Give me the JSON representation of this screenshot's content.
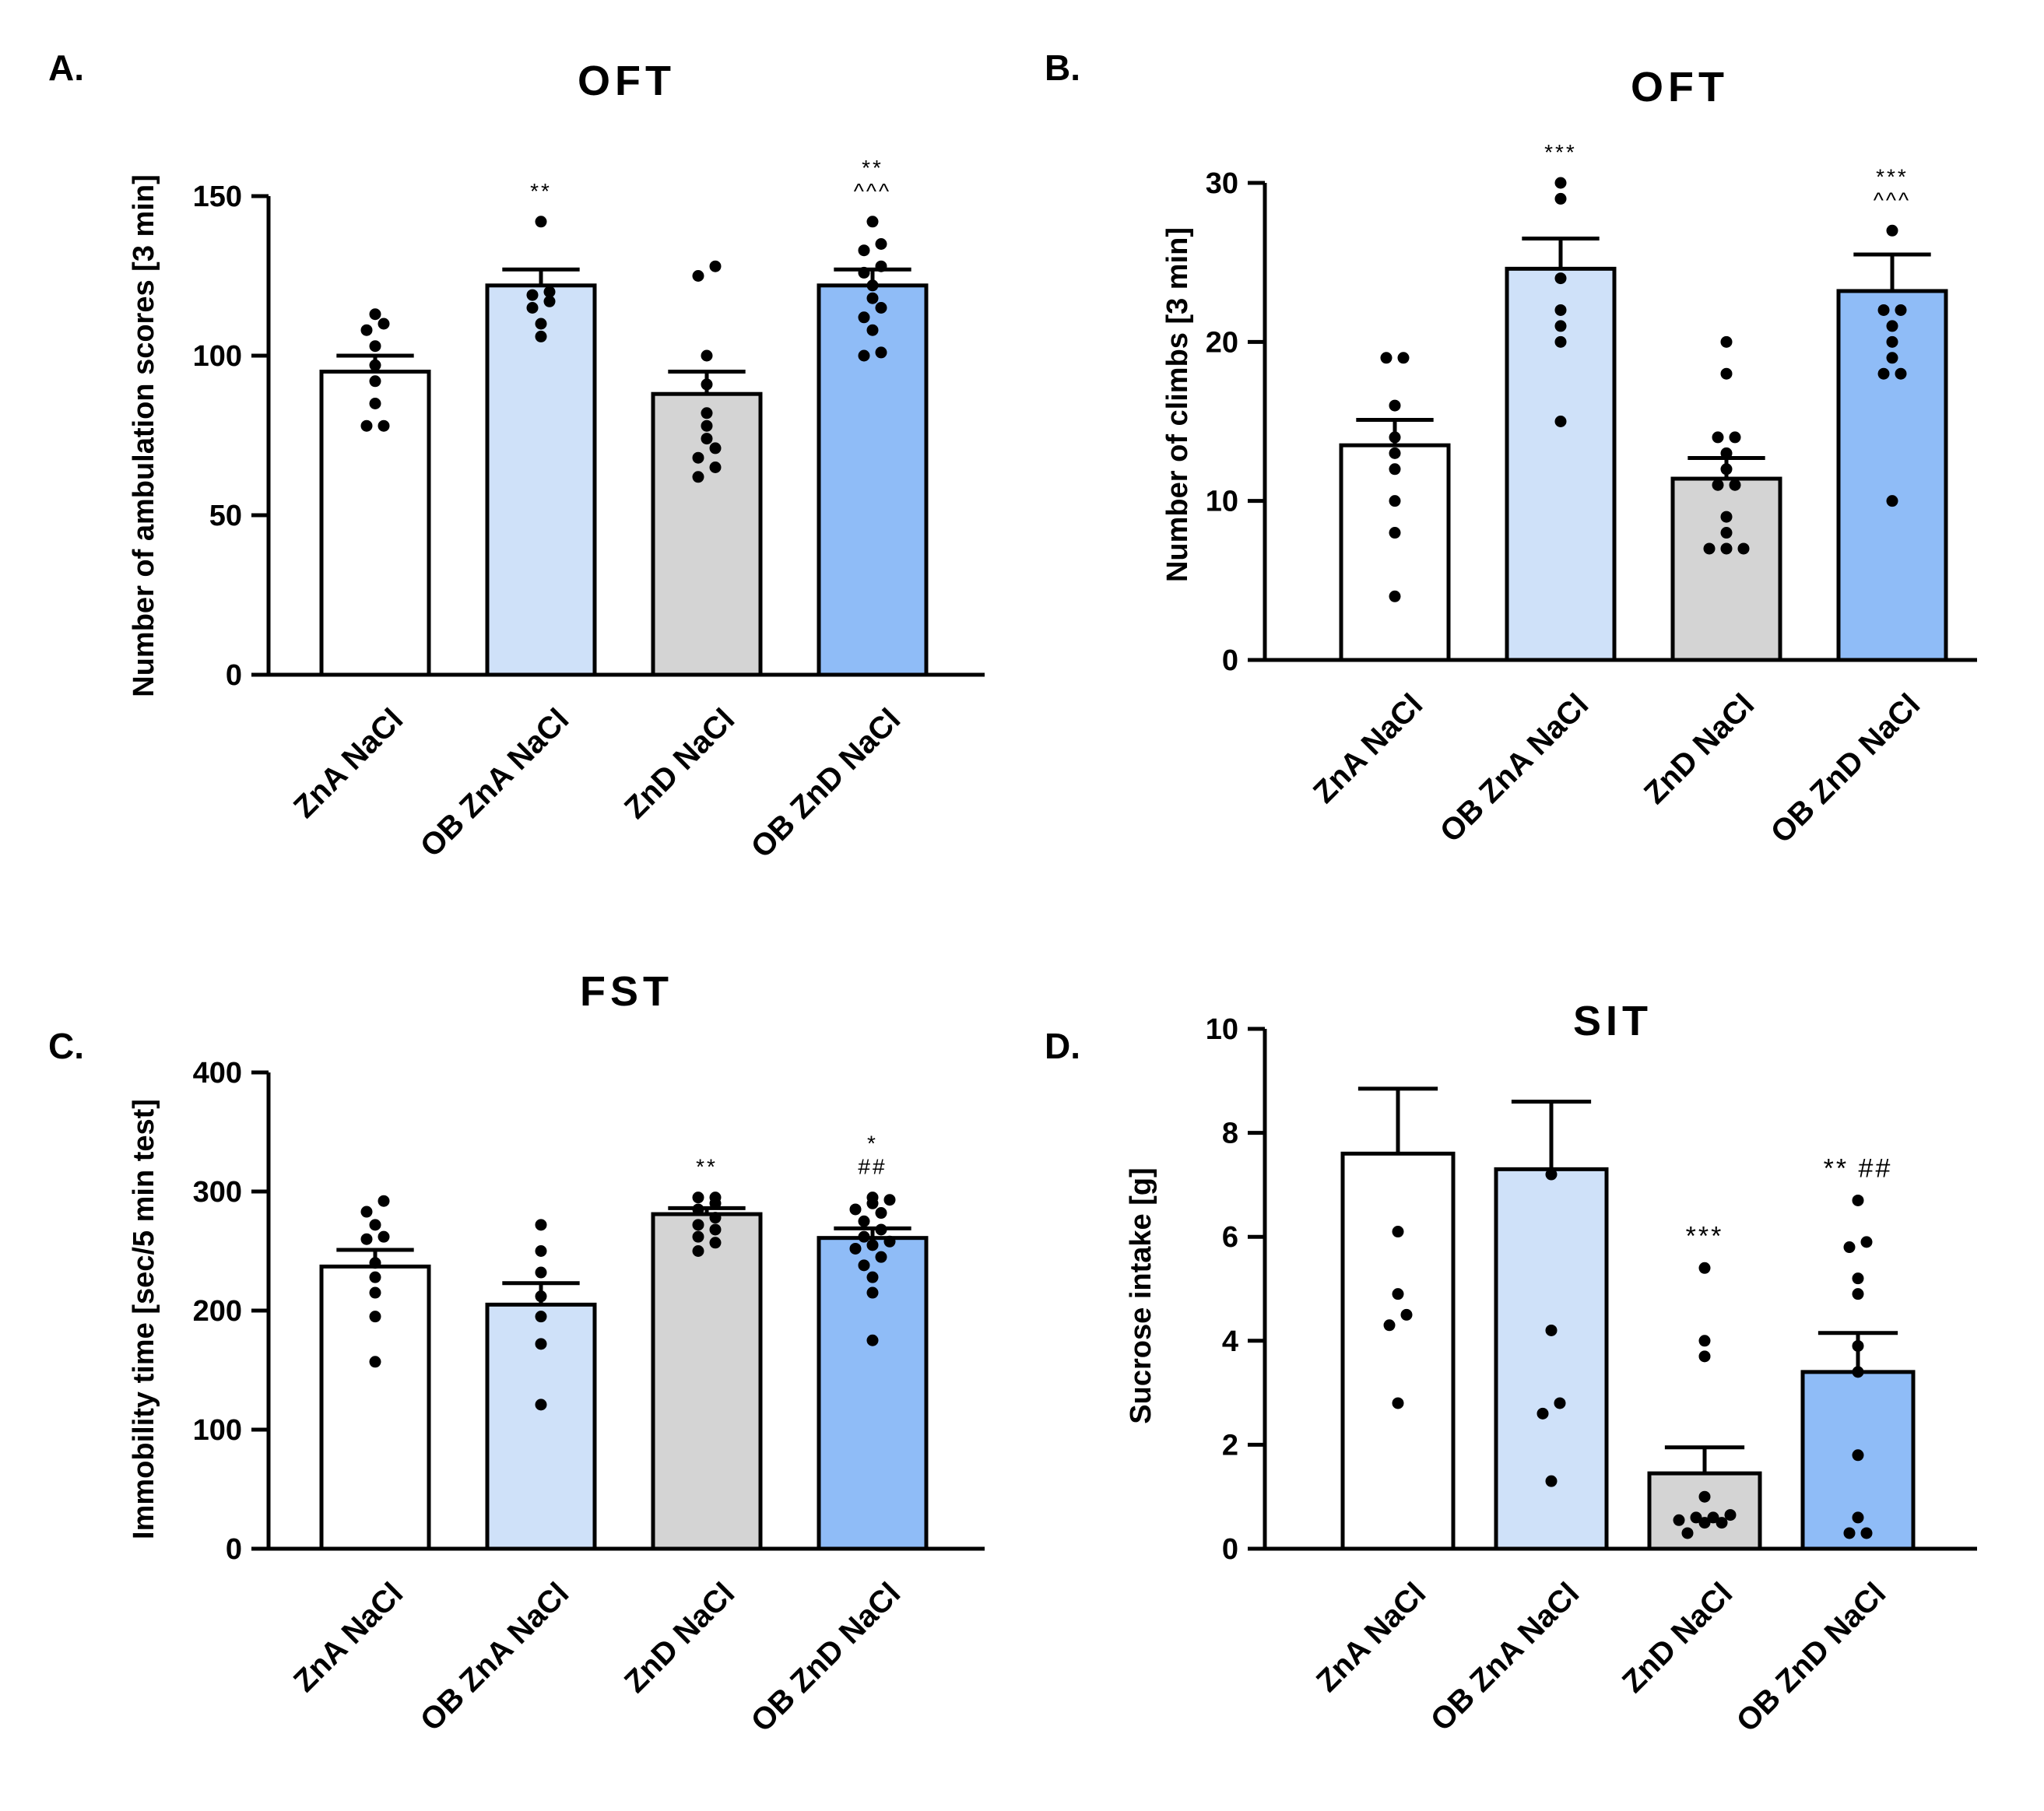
{
  "colors": {
    "bars": [
      "#ffffff",
      "#cfe1f9",
      "#d4d4d4",
      "#8fbcf7"
    ],
    "ink": "#000000"
  },
  "chart_data": [
    {
      "panel": "A.",
      "type": "bar",
      "title": "OFT",
      "ylabel": "Number of ambulation scores [3 min]",
      "ylim": [
        0,
        150
      ],
      "yticks": [
        0,
        50,
        100,
        150
      ],
      "categories": [
        "ZnA NaCl",
        "OB ZnA NaCl",
        "ZnD NaCl",
        "OB ZnD NaCl"
      ],
      "values": [
        95,
        122,
        88,
        122
      ],
      "sem": [
        5,
        5,
        7,
        5
      ],
      "points": [
        [
          78,
          78,
          85,
          92,
          97,
          103,
          108,
          110,
          113
        ],
        [
          106,
          110,
          115,
          117,
          119,
          120,
          142
        ],
        [
          62,
          65,
          68,
          71,
          74,
          78,
          82,
          91,
          100,
          125,
          128
        ],
        [
          100,
          101,
          108,
          112,
          115,
          118,
          122,
          126,
          128,
          133,
          135,
          142
        ]
      ],
      "significance": [
        [],
        [
          "**"
        ],
        [],
        [
          "**",
          "^^^"
        ]
      ]
    },
    {
      "panel": "B.",
      "type": "bar",
      "title": "OFT",
      "ylabel": "Number of climbs [3 min]",
      "ylim": [
        0,
        30
      ],
      "yticks": [
        0,
        10,
        20,
        30
      ],
      "categories": [
        "ZnA NaCl",
        "OB ZnA NaCl",
        "ZnD NaCl",
        "OB ZnD NaCl"
      ],
      "values": [
        13.5,
        24.6,
        11.4,
        23.2
      ],
      "sem": [
        1.6,
        1.9,
        1.3,
        2.3
      ],
      "points": [
        [
          4,
          8,
          10,
          12,
          13,
          14,
          16,
          19,
          19
        ],
        [
          15,
          20,
          21,
          22,
          24,
          29,
          30
        ],
        [
          7,
          7,
          7,
          8,
          9,
          11,
          11,
          12,
          13,
          14,
          14,
          18,
          20
        ],
        [
          10,
          18,
          18,
          19,
          20,
          21,
          22,
          22,
          27
        ]
      ],
      "significance": [
        [],
        [
          "***"
        ],
        [],
        [
          "***",
          "^^^"
        ]
      ]
    },
    {
      "panel": "C.",
      "type": "bar",
      "title": "FST",
      "ylabel": "Immobility time [sec/5 min test]",
      "ylim": [
        0,
        400
      ],
      "yticks": [
        0,
        100,
        200,
        300,
        400
      ],
      "categories": [
        "ZnA NaCl",
        "OB ZnA NaCl",
        "ZnD NaCl",
        "OB ZnD NaCl"
      ],
      "values": [
        237,
        205,
        281,
        261
      ],
      "sem": [
        14,
        18,
        5,
        8
      ],
      "points": [
        [
          157,
          195,
          215,
          228,
          240,
          260,
          262,
          272,
          283,
          292
        ],
        [
          121,
          172,
          195,
          212,
          232,
          250,
          272
        ],
        [
          250,
          257,
          262,
          268,
          272,
          278,
          285,
          290,
          295,
          295
        ],
        [
          175,
          215,
          228,
          238,
          245,
          252,
          255,
          258,
          262,
          268,
          275,
          282,
          285,
          290,
          293,
          295
        ]
      ],
      "significance": [
        [],
        [],
        [
          "**"
        ],
        [
          "*",
          "##"
        ]
      ]
    },
    {
      "panel": "D.",
      "type": "bar",
      "title": "SIT",
      "ylabel": "Sucrose intake [g]",
      "ylim": [
        0,
        10
      ],
      "yticks": [
        0,
        2,
        4,
        6,
        8,
        10
      ],
      "categories": [
        "ZnA NaCl",
        "OB ZnA NaCl",
        "ZnD NaCl",
        "OB ZnD NaCl"
      ],
      "values": [
        7.6,
        7.3,
        1.45,
        3.4
      ],
      "sem": [
        1.25,
        1.3,
        0.5,
        0.75
      ],
      "points": [
        [
          2.8,
          4.3,
          4.5,
          4.9,
          6.1
        ],
        [
          1.3,
          2.6,
          2.8,
          4.2,
          7.2
        ],
        [
          0.3,
          0.5,
          0.5,
          0.55,
          0.6,
          0.6,
          0.65,
          1.0,
          3.7,
          4.0,
          5.4
        ],
        [
          0.3,
          0.3,
          0.6,
          1.8,
          3.4,
          3.9,
          4.9,
          5.2,
          5.8,
          5.9,
          6.7
        ]
      ],
      "significance": [
        [],
        [],
        [
          "***"
        ],
        [
          "** ##"
        ]
      ]
    }
  ]
}
